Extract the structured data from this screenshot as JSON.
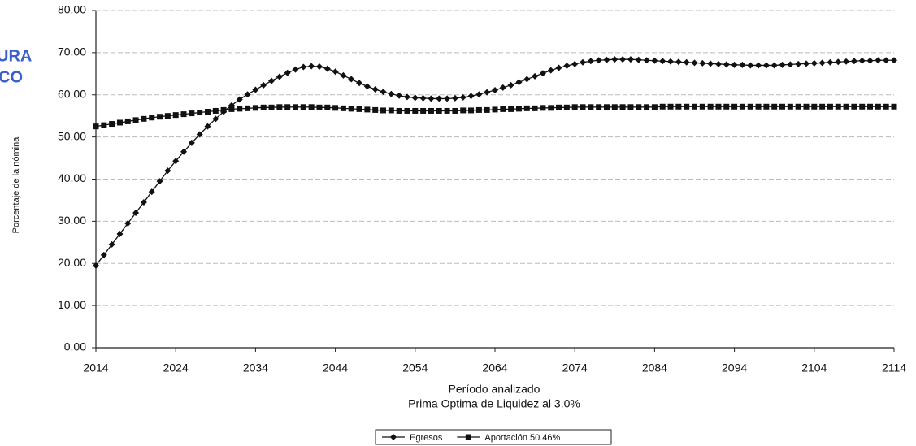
{
  "chart_data": {
    "type": "line",
    "x_label": "Período analizado",
    "subtitle": "Prima Optima de Liquidez al 3.0%",
    "y_label": "Porcentaje de la nómina",
    "stamp_text": [
      "URA",
      "CO"
    ],
    "xlim": [
      2014,
      2114
    ],
    "xticks": [
      2014,
      2024,
      2034,
      2044,
      2054,
      2064,
      2074,
      2084,
      2094,
      2104,
      2114
    ],
    "ylim": [
      0,
      80
    ],
    "yticks": [
      {
        "value": 0,
        "label": "0.00"
      },
      {
        "value": 10,
        "label": "10.00"
      },
      {
        "value": 20,
        "label": "20.00"
      },
      {
        "value": 30,
        "label": "30.00"
      },
      {
        "value": 40,
        "label": "40.00"
      },
      {
        "value": 50,
        "label": "50.00"
      },
      {
        "value": 60,
        "label": "60.00"
      },
      {
        "value": 70,
        "label": "70.00"
      },
      {
        "value": 80,
        "label": "80.00"
      }
    ],
    "grid": true,
    "legend": "bottom",
    "x": [
      2014,
      2015,
      2016,
      2017,
      2018,
      2019,
      2020,
      2021,
      2022,
      2023,
      2024,
      2025,
      2026,
      2027,
      2028,
      2029,
      2030,
      2031,
      2032,
      2033,
      2034,
      2035,
      2036,
      2037,
      2038,
      2039,
      2040,
      2041,
      2042,
      2043,
      2044,
      2045,
      2046,
      2047,
      2048,
      2049,
      2050,
      2051,
      2052,
      2053,
      2054,
      2055,
      2056,
      2057,
      2058,
      2059,
      2060,
      2061,
      2062,
      2063,
      2064,
      2065,
      2066,
      2067,
      2068,
      2069,
      2070,
      2071,
      2072,
      2073,
      2074,
      2075,
      2076,
      2077,
      2078,
      2079,
      2080,
      2081,
      2082,
      2083,
      2084,
      2085,
      2086,
      2087,
      2088,
      2089,
      2090,
      2091,
      2092,
      2093,
      2094,
      2095,
      2096,
      2097,
      2098,
      2099,
      2100,
      2101,
      2102,
      2103,
      2104,
      2105,
      2106,
      2107,
      2108,
      2109,
      2110,
      2111,
      2112,
      2113,
      2114
    ],
    "series": [
      {
        "name": "Egresos",
        "color": "#111111",
        "marker": "diamond",
        "values": [
          19.5,
          22.0,
          24.5,
          27.0,
          29.5,
          32.0,
          34.5,
          37.0,
          39.5,
          42.0,
          44.3,
          46.5,
          48.6,
          50.6,
          52.5,
          54.3,
          56.0,
          57.5,
          58.9,
          60.1,
          61.2,
          62.3,
          63.3,
          64.3,
          65.2,
          66.0,
          66.6,
          66.8,
          66.7,
          66.2,
          65.5,
          64.6,
          63.7,
          62.8,
          62.0,
          61.3,
          60.7,
          60.2,
          59.8,
          59.5,
          59.3,
          59.2,
          59.1,
          59.1,
          59.1,
          59.2,
          59.4,
          59.7,
          60.1,
          60.6,
          61.1,
          61.7,
          62.3,
          63.0,
          63.7,
          64.4,
          65.1,
          65.8,
          66.4,
          66.9,
          67.3,
          67.7,
          68.0,
          68.2,
          68.3,
          68.4,
          68.4,
          68.4,
          68.3,
          68.2,
          68.1,
          68.0,
          67.9,
          67.8,
          67.7,
          67.6,
          67.5,
          67.4,
          67.3,
          67.2,
          67.1,
          67.1,
          67.0,
          67.0,
          67.0,
          67.0,
          67.1,
          67.2,
          67.3,
          67.4,
          67.5,
          67.6,
          67.7,
          67.8,
          67.9,
          68.0,
          68.1,
          68.1,
          68.2,
          68.2,
          68.2
        ]
      },
      {
        "name": "Aportación 50.46%",
        "color": "#111111",
        "marker": "square",
        "values": [
          52.5,
          52.8,
          53.1,
          53.4,
          53.7,
          54.0,
          54.3,
          54.6,
          54.8,
          55.0,
          55.2,
          55.4,
          55.6,
          55.8,
          56.0,
          56.2,
          56.4,
          56.6,
          56.7,
          56.8,
          56.9,
          57.0,
          57.0,
          57.1,
          57.1,
          57.1,
          57.1,
          57.1,
          57.0,
          57.0,
          56.9,
          56.8,
          56.7,
          56.6,
          56.5,
          56.4,
          56.3,
          56.3,
          56.2,
          56.2,
          56.2,
          56.2,
          56.2,
          56.2,
          56.2,
          56.2,
          56.3,
          56.3,
          56.4,
          56.4,
          56.5,
          56.6,
          56.6,
          56.7,
          56.8,
          56.8,
          56.9,
          56.9,
          57.0,
          57.0,
          57.1,
          57.1,
          57.1,
          57.1,
          57.1,
          57.1,
          57.1,
          57.1,
          57.1,
          57.1,
          57.1,
          57.2,
          57.2,
          57.2,
          57.2,
          57.2,
          57.2,
          57.2,
          57.2,
          57.2,
          57.2,
          57.2,
          57.2,
          57.2,
          57.2,
          57.2,
          57.2,
          57.2,
          57.2,
          57.2,
          57.2,
          57.2,
          57.2,
          57.2,
          57.2,
          57.2,
          57.2,
          57.2,
          57.2,
          57.2,
          57.2
        ]
      }
    ]
  }
}
